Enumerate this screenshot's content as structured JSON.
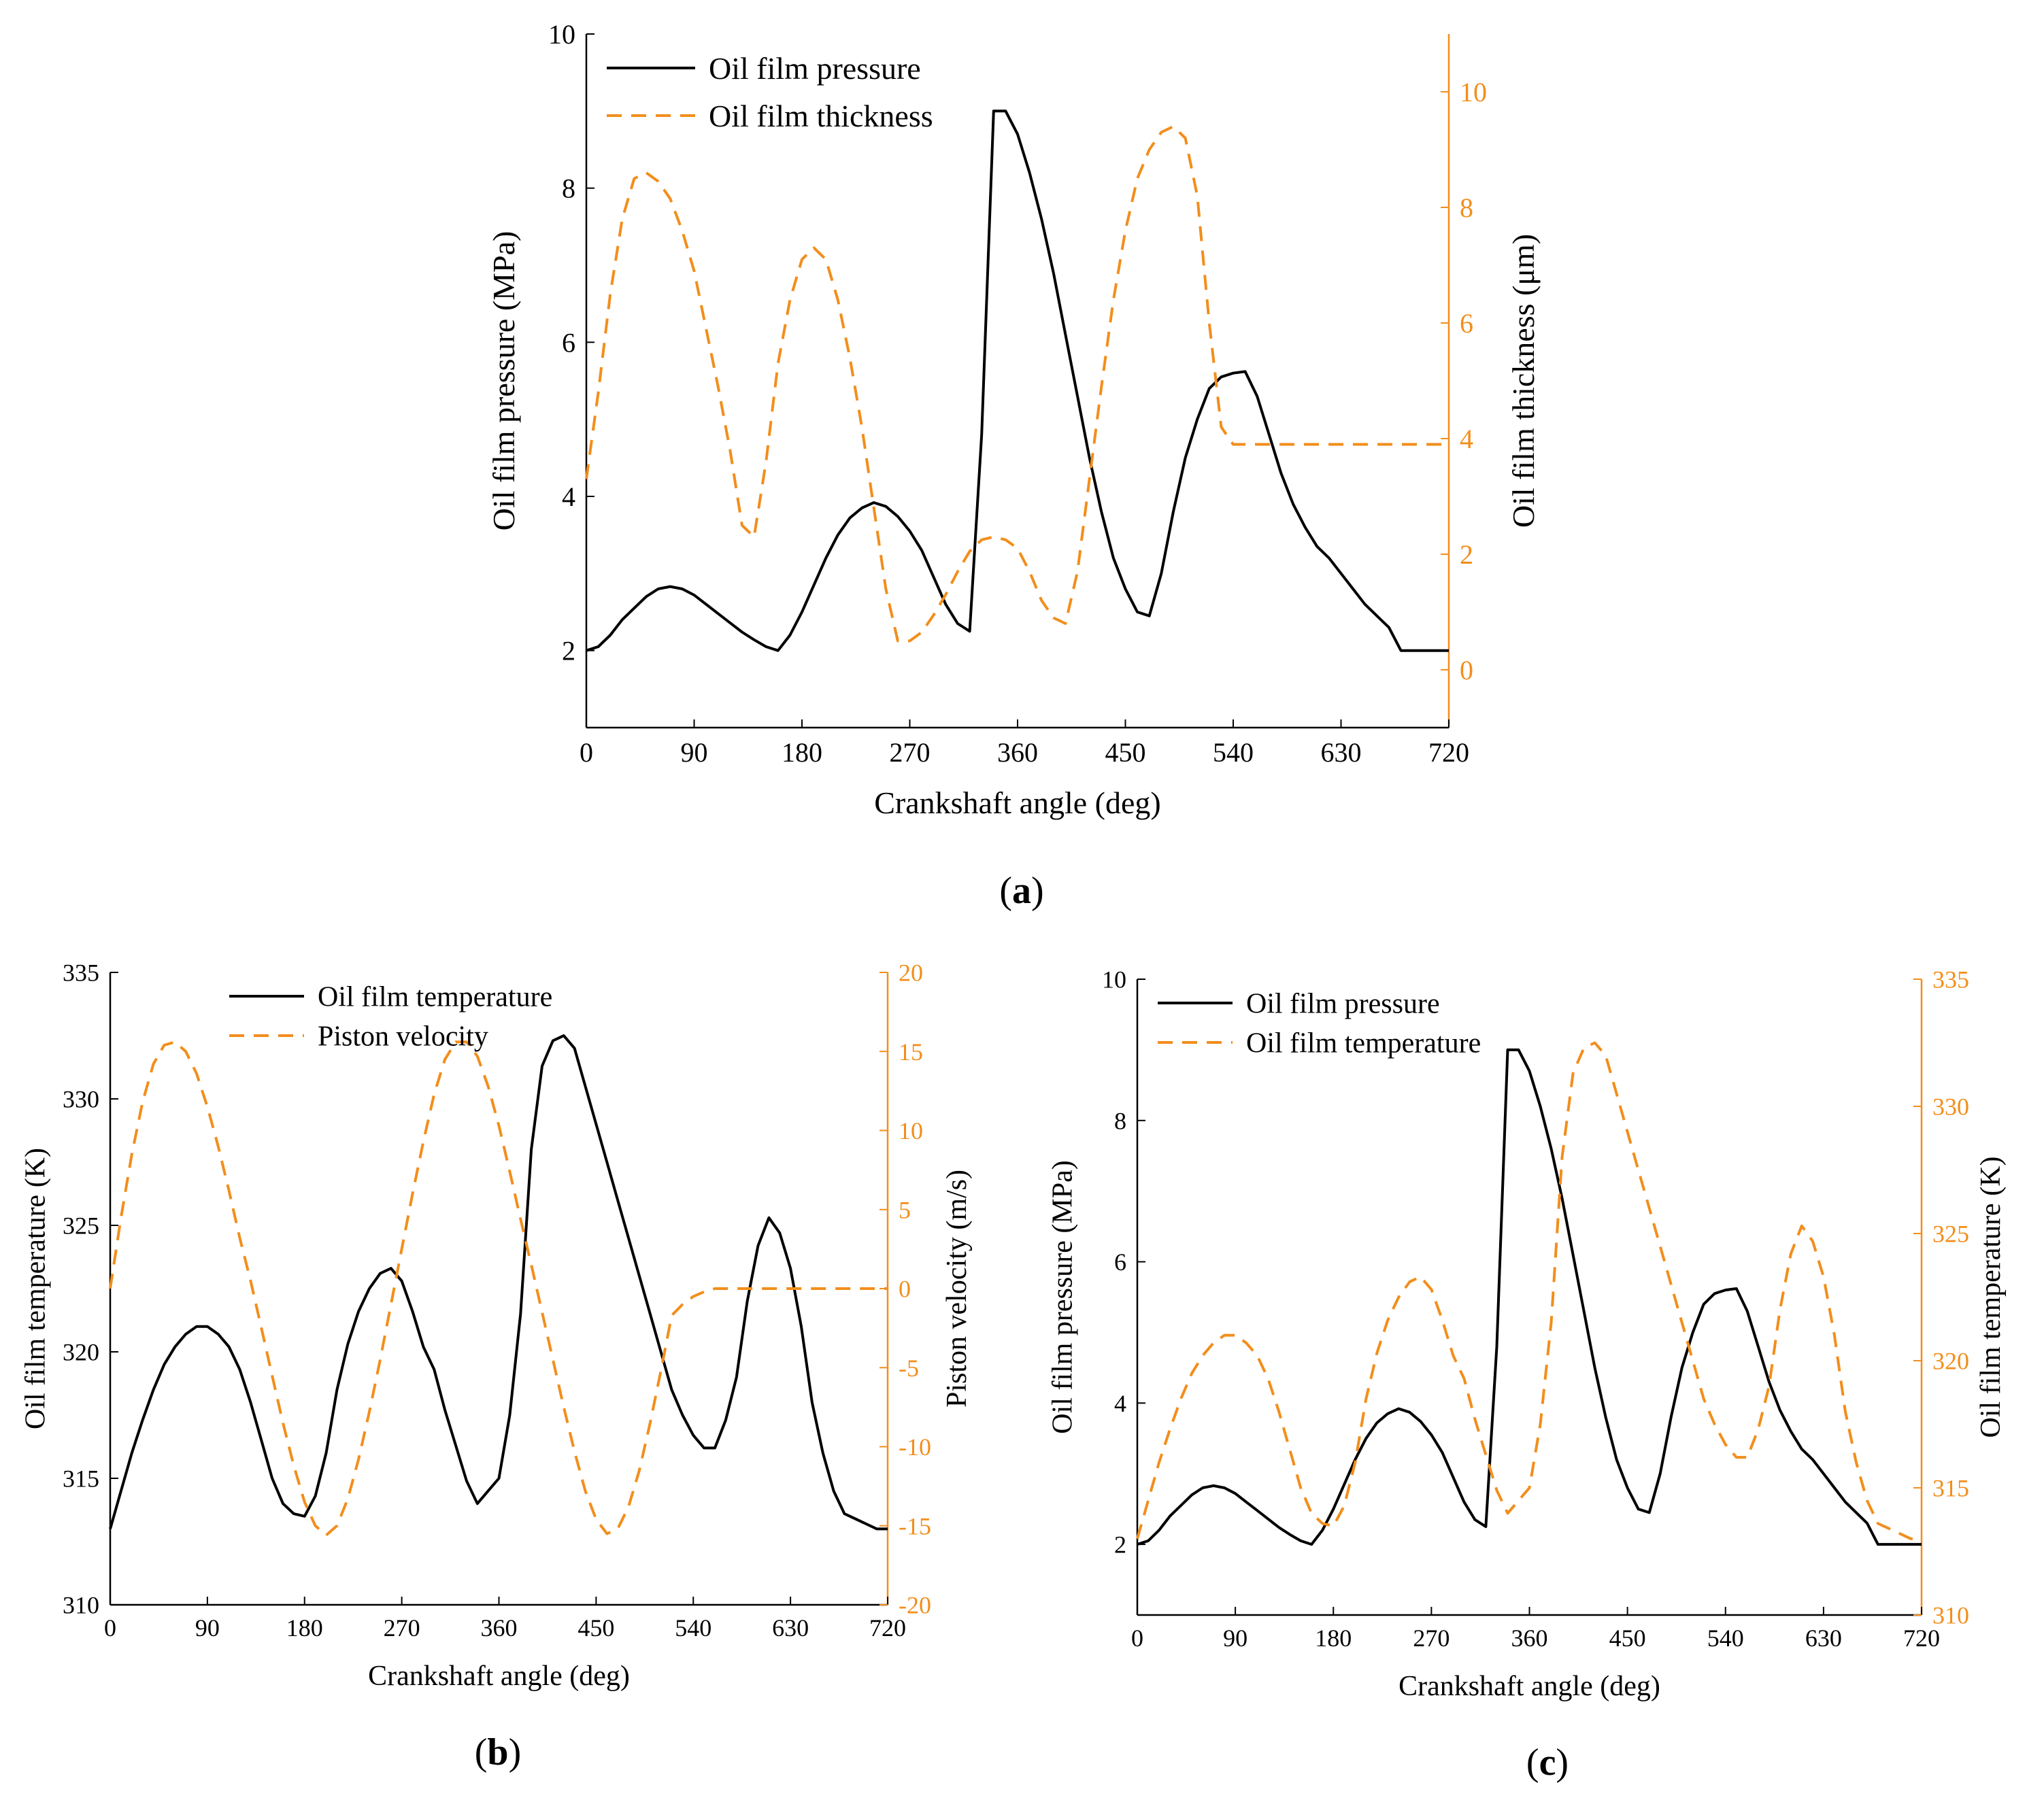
{
  "chart_data": [
    {
      "type": "line",
      "panel_label": "(a)",
      "panel_letter": "a",
      "x": [
        0,
        10,
        20,
        30,
        40,
        50,
        60,
        70,
        80,
        90,
        100,
        110,
        120,
        130,
        140,
        150,
        160,
        170,
        180,
        190,
        200,
        210,
        220,
        230,
        240,
        250,
        260,
        270,
        280,
        290,
        300,
        310,
        320,
        330,
        340,
        350,
        360,
        370,
        380,
        390,
        400,
        410,
        420,
        430,
        440,
        450,
        460,
        470,
        480,
        490,
        500,
        510,
        520,
        530,
        540,
        550,
        560,
        570,
        580,
        590,
        600,
        610,
        620,
        630,
        640,
        650,
        660,
        670,
        680,
        690,
        700,
        710,
        720
      ],
      "xlabel": "Crankshaft angle (deg)",
      "xlim": [
        0,
        720
      ],
      "xticks": [
        0,
        90,
        180,
        270,
        360,
        450,
        540,
        630,
        720
      ],
      "ylabel": "Oil film pressure (MPa)",
      "ylim": [
        1,
        10
      ],
      "yticks": [
        2,
        4,
        6,
        8,
        10
      ],
      "y2label": "Oil film thickness (μm)",
      "y2lim": [
        -1,
        11
      ],
      "y2ticks": [
        0,
        2,
        4,
        6,
        8,
        10
      ],
      "legend_position": "top-left",
      "series": [
        {
          "name": "Oil film pressure",
          "axis": "left",
          "color": "#000000",
          "style": "solid",
          "values": [
            2.0,
            2.05,
            2.2,
            2.4,
            2.55,
            2.7,
            2.8,
            2.83,
            2.8,
            2.72,
            2.6,
            2.48,
            2.36,
            2.24,
            2.14,
            2.05,
            2.0,
            2.2,
            2.5,
            2.85,
            3.2,
            3.5,
            3.72,
            3.85,
            3.92,
            3.87,
            3.74,
            3.55,
            3.3,
            2.95,
            2.6,
            2.35,
            2.25,
            4.8,
            9.0,
            9.0,
            8.7,
            8.2,
            7.6,
            6.9,
            6.1,
            5.3,
            4.5,
            3.8,
            3.2,
            2.8,
            2.5,
            2.45,
            3.0,
            3.8,
            4.5,
            5.0,
            5.4,
            5.55,
            5.6,
            5.62,
            5.3,
            4.8,
            4.3,
            3.9,
            3.6,
            3.35,
            3.2,
            3.0,
            2.8,
            2.6,
            2.45,
            2.3,
            2.0,
            2.0,
            2.0,
            2.0,
            2.0
          ]
        },
        {
          "name": "Oil film thickness",
          "axis": "right",
          "color": "#f28e1c",
          "style": "dashed",
          "values": [
            3.3,
            4.8,
            6.5,
            7.8,
            8.5,
            8.6,
            8.45,
            8.15,
            7.6,
            6.9,
            5.9,
            4.9,
            3.8,
            2.5,
            2.3,
            3.6,
            5.3,
            6.4,
            7.1,
            7.3,
            7.1,
            6.4,
            5.4,
            4.2,
            2.8,
            1.4,
            0.5,
            0.5,
            0.65,
            0.95,
            1.3,
            1.7,
            2.05,
            2.25,
            2.3,
            2.25,
            2.1,
            1.7,
            1.2,
            0.9,
            0.8,
            1.7,
            3.3,
            4.9,
            6.4,
            7.6,
            8.5,
            9.0,
            9.3,
            9.4,
            9.2,
            8.2,
            6.0,
            4.2,
            3.9,
            3.9,
            3.9,
            3.9,
            3.9,
            3.9,
            3.9,
            3.9,
            3.9,
            3.9,
            3.9,
            3.9,
            3.9,
            3.9,
            3.9,
            3.9,
            3.9,
            3.9,
            3.9
          ]
        }
      ]
    },
    {
      "type": "line",
      "panel_label": "(b)",
      "panel_letter": "b",
      "x": [
        0,
        10,
        20,
        30,
        40,
        50,
        60,
        70,
        80,
        90,
        100,
        110,
        120,
        130,
        140,
        150,
        160,
        170,
        180,
        190,
        200,
        210,
        220,
        230,
        240,
        250,
        260,
        270,
        280,
        290,
        300,
        310,
        320,
        330,
        340,
        350,
        360,
        370,
        380,
        390,
        400,
        410,
        420,
        430,
        440,
        450,
        460,
        470,
        480,
        490,
        500,
        510,
        520,
        530,
        540,
        550,
        560,
        570,
        580,
        590,
        600,
        610,
        620,
        630,
        640,
        650,
        660,
        670,
        680,
        690,
        700,
        710,
        720
      ],
      "xlabel": "Crankshaft angle (deg)",
      "xlim": [
        0,
        720
      ],
      "xticks": [
        0,
        90,
        180,
        270,
        360,
        450,
        540,
        630,
        720
      ],
      "ylabel": "Oil film temperature (K)",
      "ylim": [
        310,
        335
      ],
      "yticks": [
        310,
        315,
        320,
        325,
        330,
        335
      ],
      "y2label": "Piston velocity (m/s)",
      "y2lim": [
        -20,
        20
      ],
      "y2ticks": [
        -20,
        -15,
        -10,
        -5,
        0,
        5,
        10,
        15,
        20
      ],
      "legend_position": "top-center",
      "series": [
        {
          "name": "Oil film temperature",
          "axis": "left",
          "color": "#000000",
          "style": "solid",
          "values": [
            313.0,
            314.5,
            316.0,
            317.3,
            318.5,
            319.5,
            320.2,
            320.7,
            321.0,
            321.0,
            320.7,
            320.2,
            319.3,
            318.0,
            316.5,
            315.0,
            314.0,
            313.6,
            313.5,
            314.3,
            316.0,
            318.5,
            320.3,
            321.6,
            322.5,
            323.1,
            323.3,
            322.8,
            321.6,
            320.2,
            319.3,
            317.7,
            316.3,
            314.9,
            314.0,
            314.5,
            315.0,
            317.5,
            321.5,
            328.0,
            331.3,
            332.3,
            332.5,
            332.0,
            330.5,
            329.0,
            327.5,
            326.0,
            324.5,
            323.0,
            321.5,
            320.0,
            318.5,
            317.5,
            316.7,
            316.2,
            316.2,
            317.3,
            319.0,
            322.0,
            324.2,
            325.3,
            324.7,
            323.3,
            321.0,
            318.0,
            316.0,
            314.5,
            313.6,
            313.4,
            313.2,
            313.0,
            313.0
          ]
        },
        {
          "name": "Piston velocity",
          "axis": "right",
          "color": "#f28e1c",
          "style": "dashed",
          "values": [
            0.0,
            4.5,
            8.5,
            11.8,
            14.2,
            15.4,
            15.6,
            15.0,
            13.6,
            11.5,
            9.0,
            6.2,
            3.2,
            0.5,
            -2.5,
            -5.5,
            -8.5,
            -11.2,
            -13.5,
            -15.0,
            -15.6,
            -15.0,
            -13.3,
            -10.8,
            -7.8,
            -4.5,
            -1.0,
            2.5,
            6.0,
            9.3,
            12.3,
            14.5,
            15.6,
            15.6,
            14.7,
            12.8,
            10.3,
            7.4,
            4.4,
            1.5,
            -1.5,
            -4.5,
            -7.5,
            -10.3,
            -12.8,
            -14.6,
            -15.5,
            -15.2,
            -13.8,
            -11.5,
            -8.5,
            -5.2,
            -1.7,
            -1.0,
            -0.5,
            -0.2,
            0.0,
            0.0,
            0.0,
            0.0,
            0.0,
            0.0,
            0.0,
            0.0,
            0.0,
            0.0,
            0.0,
            0.0,
            0.0,
            0.0,
            0.0,
            0.0,
            0.0
          ]
        }
      ]
    },
    {
      "type": "line",
      "panel_label": "(c)",
      "panel_letter": "c",
      "x": [
        0,
        10,
        20,
        30,
        40,
        50,
        60,
        70,
        80,
        90,
        100,
        110,
        120,
        130,
        140,
        150,
        160,
        170,
        180,
        190,
        200,
        210,
        220,
        230,
        240,
        250,
        260,
        270,
        280,
        290,
        300,
        310,
        320,
        330,
        340,
        350,
        360,
        370,
        380,
        390,
        400,
        410,
        420,
        430,
        440,
        450,
        460,
        470,
        480,
        490,
        500,
        510,
        520,
        530,
        540,
        550,
        560,
        570,
        580,
        590,
        600,
        610,
        620,
        630,
        640,
        650,
        660,
        670,
        680,
        690,
        700,
        710,
        720
      ],
      "xlabel": "Crankshaft angle (deg)",
      "xlim": [
        0,
        720
      ],
      "xticks": [
        0,
        90,
        180,
        270,
        360,
        450,
        540,
        630,
        720
      ],
      "ylabel": "Oil film pressure (MPa)",
      "ylim": [
        1,
        10
      ],
      "yticks": [
        2,
        4,
        6,
        8,
        10
      ],
      "y2label": "Oil film temperature (K)",
      "y2lim": [
        310,
        335
      ],
      "y2ticks": [
        310,
        315,
        320,
        325,
        330,
        335
      ],
      "legend_position": "top-left",
      "series": [
        {
          "name": "Oil film pressure",
          "axis": "left",
          "color": "#000000",
          "style": "solid",
          "values": [
            2.0,
            2.05,
            2.2,
            2.4,
            2.55,
            2.7,
            2.8,
            2.83,
            2.8,
            2.72,
            2.6,
            2.48,
            2.36,
            2.24,
            2.14,
            2.05,
            2.0,
            2.2,
            2.5,
            2.85,
            3.2,
            3.5,
            3.72,
            3.85,
            3.92,
            3.87,
            3.74,
            3.55,
            3.3,
            2.95,
            2.6,
            2.35,
            2.25,
            4.8,
            9.0,
            9.0,
            8.7,
            8.2,
            7.6,
            6.9,
            6.1,
            5.3,
            4.5,
            3.8,
            3.2,
            2.8,
            2.5,
            2.45,
            3.0,
            3.8,
            4.5,
            5.0,
            5.4,
            5.55,
            5.6,
            5.62,
            5.3,
            4.8,
            4.3,
            3.9,
            3.6,
            3.35,
            3.2,
            3.0,
            2.8,
            2.6,
            2.45,
            2.3,
            2.0,
            2.0,
            2.0,
            2.0,
            2.0
          ]
        },
        {
          "name": "Oil film temperature",
          "axis": "right",
          "color": "#f28e1c",
          "style": "dashed",
          "values": [
            313.0,
            314.5,
            316.0,
            317.3,
            318.5,
            319.5,
            320.2,
            320.7,
            321.0,
            321.0,
            320.7,
            320.2,
            319.3,
            318.0,
            316.5,
            315.0,
            314.0,
            313.6,
            313.5,
            314.3,
            316.0,
            318.5,
            320.3,
            321.6,
            322.5,
            323.1,
            323.3,
            322.8,
            321.6,
            320.2,
            319.3,
            317.7,
            316.3,
            314.9,
            314.0,
            314.5,
            315.0,
            317.5,
            321.5,
            328.0,
            331.3,
            332.3,
            332.5,
            332.0,
            330.5,
            329.0,
            327.5,
            326.0,
            324.5,
            323.0,
            321.5,
            320.0,
            318.5,
            317.5,
            316.7,
            316.2,
            316.2,
            317.3,
            319.0,
            322.0,
            324.2,
            325.3,
            324.7,
            323.3,
            321.0,
            318.0,
            316.0,
            314.5,
            313.6,
            313.4,
            313.2,
            313.0,
            313.0
          ]
        }
      ]
    }
  ]
}
